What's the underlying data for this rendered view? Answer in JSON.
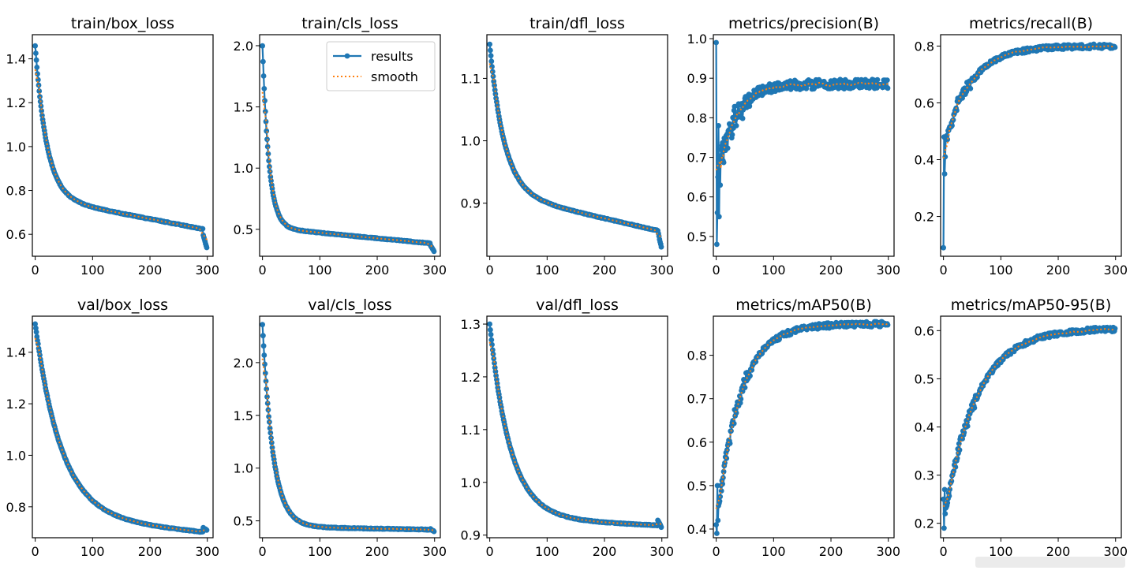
{
  "colors": {
    "results": "#1f77b4",
    "smooth": "#ff7f0e",
    "axis": "#000000",
    "background": "#ffffff"
  },
  "legend": {
    "results": "results",
    "smooth": "smooth",
    "placement": "top-right"
  },
  "chart_data": [
    {
      "type": "line",
      "title": "train/box_loss",
      "xlim": [
        -5,
        310
      ],
      "ylim": [
        0.5,
        1.51
      ],
      "xticks": [
        0,
        100,
        200,
        300
      ],
      "yticks": [
        0.6,
        0.8,
        1.0,
        1.2,
        1.4
      ],
      "ytick_labels": [
        "0.6",
        "0.8",
        "1.0",
        "1.2",
        "1.4"
      ],
      "series": [
        {
          "name": "results",
          "curve": "exp",
          "start": 1.46,
          "end": 0.54,
          "floor": 0.74,
          "slope": -0.0005,
          "rate": 0.05
        }
      ]
    },
    {
      "type": "line",
      "title": "train/cls_loss",
      "xlim": [
        -5,
        310
      ],
      "ylim": [
        0.28,
        2.09
      ],
      "xticks": [
        0,
        100,
        200,
        300
      ],
      "yticks": [
        0.5,
        1.0,
        1.5,
        2.0
      ],
      "ytick_labels": [
        "0.5",
        "1.0",
        "1.5",
        "2.0"
      ],
      "legend": true,
      "series": [
        {
          "name": "results",
          "curve": "exp",
          "start": 2.0,
          "end": 0.32,
          "floor": 0.49,
          "slope": -0.00045,
          "rate": 0.09
        }
      ]
    },
    {
      "type": "line",
      "title": "train/dfl_loss",
      "xlim": [
        -5,
        310
      ],
      "ylim": [
        0.815,
        1.17
      ],
      "xticks": [
        0,
        100,
        200,
        300
      ],
      "yticks": [
        0.9,
        1.0,
        1.1
      ],
      "ytick_labels": [
        "0.9",
        "1.0",
        "1.1"
      ],
      "series": [
        {
          "name": "results",
          "curve": "exp",
          "start": 1.155,
          "end": 0.83,
          "floor": 0.905,
          "slope": -0.00021,
          "rate": 0.04
        }
      ]
    },
    {
      "type": "line",
      "title": "metrics/precision(B)",
      "xlim": [
        -5,
        310
      ],
      "ylim": [
        0.45,
        1.01
      ],
      "xticks": [
        0,
        100,
        200,
        300
      ],
      "yticks": [
        0.5,
        0.6,
        0.7,
        0.8,
        0.9,
        1.0
      ],
      "ytick_labels": [
        "0.5",
        "0.6",
        "0.7",
        "0.8",
        "0.9",
        "1.0"
      ],
      "series": [
        {
          "name": "results",
          "curve": "grow",
          "start": 0.99,
          "early": [
            0.99,
            0.48,
            0.56,
            0.65,
            0.78,
            0.55,
            0.7,
            0.63,
            0.72
          ],
          "base": 0.62,
          "top": 0.885,
          "rate": 0.035,
          "noise": 0.012
        }
      ]
    },
    {
      "type": "line",
      "title": "metrics/recall(B)",
      "xlim": [
        -5,
        310
      ],
      "ylim": [
        0.06,
        0.84
      ],
      "xticks": [
        0,
        100,
        200,
        300
      ],
      "yticks": [
        0.2,
        0.4,
        0.6,
        0.8
      ],
      "ytick_labels": [
        "0.2",
        "0.4",
        "0.6",
        "0.8"
      ],
      "series": [
        {
          "name": "results",
          "curve": "grow",
          "start": 0.09,
          "early": [
            0.09,
            0.48,
            0.35,
            0.41
          ],
          "base": 0.44,
          "top": 0.8,
          "rate": 0.022,
          "noise": 0.008
        }
      ]
    },
    {
      "type": "line",
      "title": "val/box_loss",
      "xlim": [
        -5,
        310
      ],
      "ylim": [
        0.68,
        1.54
      ],
      "xticks": [
        0,
        100,
        200,
        300
      ],
      "yticks": [
        0.8,
        1.0,
        1.2,
        1.4
      ],
      "ytick_labels": [
        "0.8",
        "1.0",
        "1.2",
        "1.4"
      ],
      "series": [
        {
          "name": "results",
          "curve": "exp",
          "start": 1.51,
          "end": 0.71,
          "floor": 0.75,
          "slope": -0.00021,
          "rate": 0.022
        }
      ]
    },
    {
      "type": "line",
      "title": "val/cls_loss",
      "xlim": [
        -5,
        310
      ],
      "ylim": [
        0.34,
        2.44
      ],
      "xticks": [
        0,
        100,
        200,
        300
      ],
      "yticks": [
        0.5,
        1.0,
        1.5,
        2.0
      ],
      "ytick_labels": [
        "0.5",
        "1.0",
        "1.5",
        "2.0"
      ],
      "series": [
        {
          "name": "results",
          "curve": "exp",
          "start": 2.36,
          "end": 0.4,
          "floor": 0.44,
          "slope": -0.0001,
          "rate": 0.055
        }
      ]
    },
    {
      "type": "line",
      "title": "val/dfl_loss",
      "xlim": [
        -5,
        310
      ],
      "ylim": [
        0.895,
        1.315
      ],
      "xticks": [
        0,
        100,
        200,
        300
      ],
      "yticks": [
        0.9,
        1.0,
        1.1,
        1.2,
        1.3
      ],
      "ytick_labels": [
        "0.9",
        "1.0",
        "1.1",
        "1.2",
        "1.3"
      ],
      "series": [
        {
          "name": "results",
          "curve": "exp",
          "start": 1.3,
          "end": 0.915,
          "floor": 0.93,
          "slope": -5e-05,
          "rate": 0.028
        }
      ]
    },
    {
      "type": "line",
      "title": "metrics/mAP50(B)",
      "xlim": [
        -5,
        310
      ],
      "ylim": [
        0.38,
        0.89
      ],
      "xticks": [
        0,
        100,
        200,
        300
      ],
      "yticks": [
        0.4,
        0.5,
        0.6,
        0.7,
        0.8
      ],
      "ytick_labels": [
        "0.4",
        "0.5",
        "0.6",
        "0.7",
        "0.8"
      ],
      "series": [
        {
          "name": "results",
          "curve": "grow",
          "start": 0.41,
          "early": [
            0.41,
            0.39,
            0.5,
            0.42
          ],
          "base": 0.4,
          "top": 0.872,
          "rate": 0.025,
          "noise": 0.006
        }
      ]
    },
    {
      "type": "line",
      "title": "metrics/mAP50-95(B)",
      "xlim": [
        -5,
        310
      ],
      "ylim": [
        0.17,
        0.63
      ],
      "xticks": [
        0,
        100,
        200,
        300
      ],
      "yticks": [
        0.2,
        0.3,
        0.4,
        0.5,
        0.6
      ],
      "ytick_labels": [
        "0.2",
        "0.3",
        "0.4",
        "0.5",
        "0.6"
      ],
      "series": [
        {
          "name": "results",
          "curve": "grow",
          "start": 0.25,
          "early": [
            0.25,
            0.19,
            0.27,
            0.22
          ],
          "base": 0.2,
          "top": 0.605,
          "rate": 0.018,
          "noise": 0.005
        }
      ]
    }
  ]
}
